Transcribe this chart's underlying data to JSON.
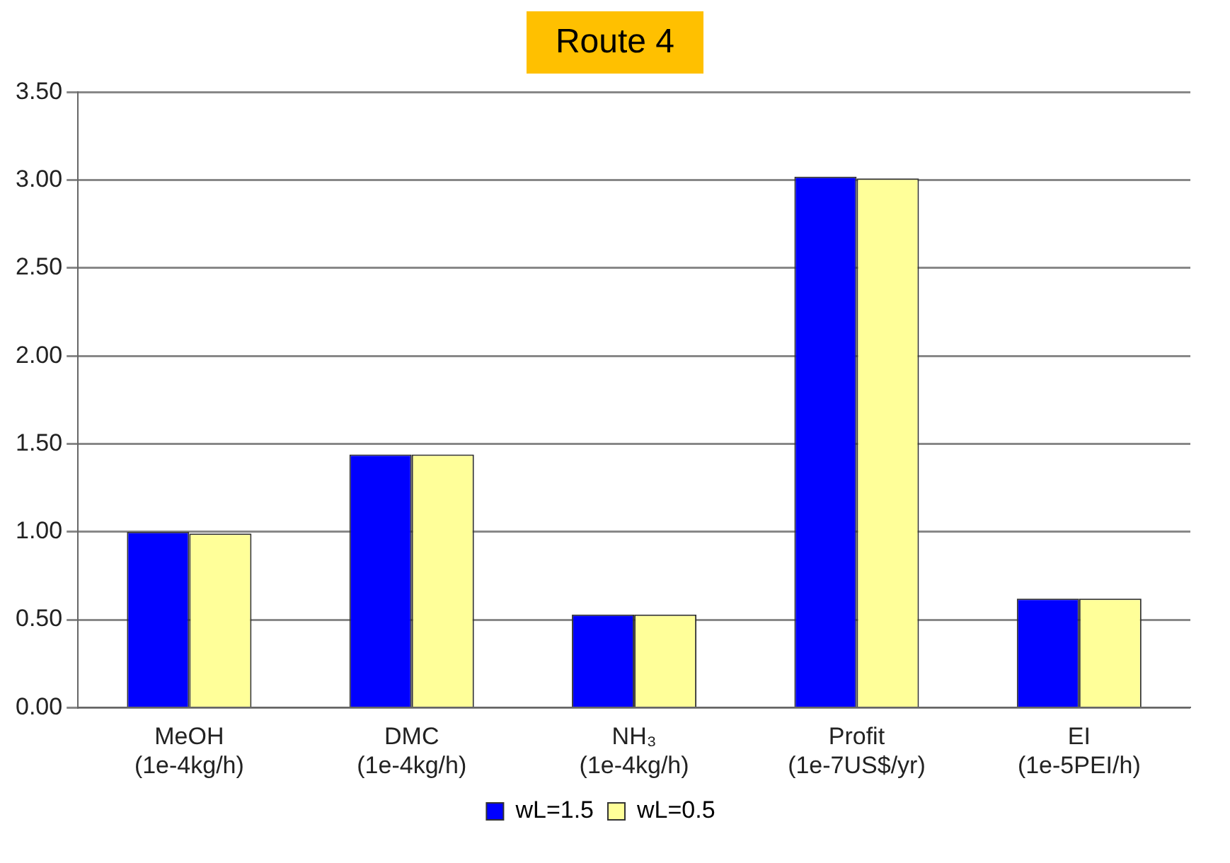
{
  "chart_data": {
    "type": "bar",
    "title": "Route 4",
    "categories": [
      "MeOH\n(1e-4kg/h)",
      "DMC\n(1e-4kg/h)",
      "NH₃\n(1e-4kg/h)",
      "Profit\n(1e-7US$/yr)",
      "EI\n(1e-5PEI/h)"
    ],
    "series": [
      {
        "name": "wL=1.5",
        "color": "#0000ff",
        "values": [
          1.0,
          1.44,
          0.53,
          3.02,
          0.62
        ]
      },
      {
        "name": "wL=0.5",
        "color": "#ffff99",
        "values": [
          0.99,
          1.44,
          0.53,
          3.01,
          0.62
        ]
      }
    ],
    "ylim": [
      0,
      3.5
    ],
    "yticks": [
      {
        "value": 0,
        "label": "0.00"
      },
      {
        "value": 0.5,
        "label": "0.50"
      },
      {
        "value": 1,
        "label": "1.00"
      },
      {
        "value": 1.5,
        "label": "1.50"
      },
      {
        "value": 2,
        "label": "2.00"
      },
      {
        "value": 2.5,
        "label": "2.50"
      },
      {
        "value": 3,
        "label": "3.00"
      },
      {
        "value": 3.5,
        "label": "3.50"
      }
    ],
    "grid": "y",
    "legend": "bottom"
  }
}
